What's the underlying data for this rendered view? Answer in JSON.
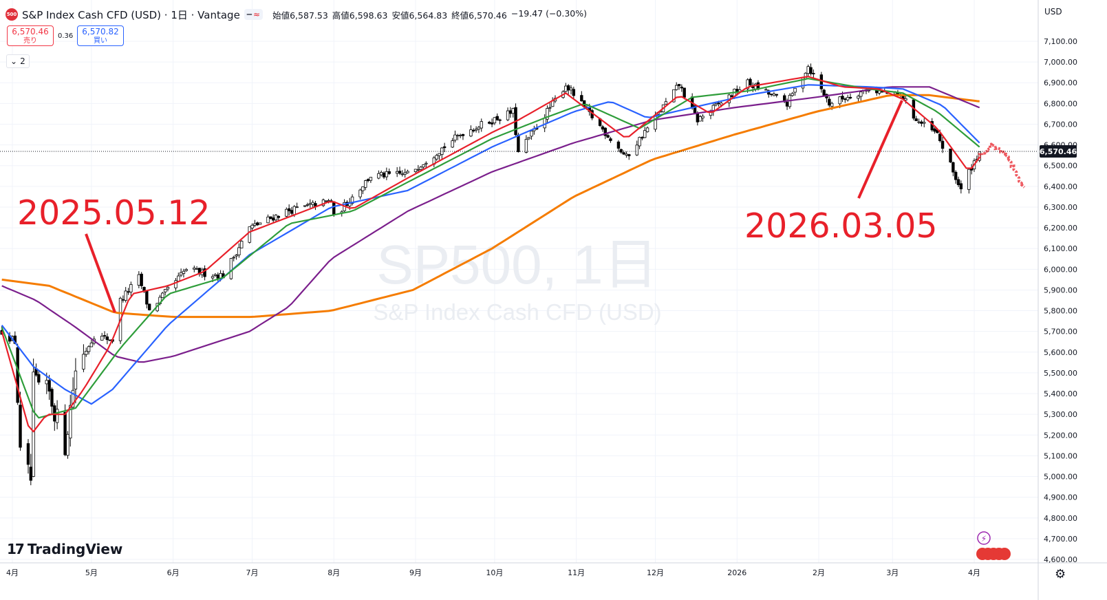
{
  "header": {
    "symbol_badge": "500",
    "title": "S&P Index Cash CFD (USD) · 1日 · Vantage",
    "btn_a": "━",
    "btn_b": "≈",
    "open_label": "始値",
    "open": "6,587.53",
    "high_label": "高値",
    "high": "6,598.63",
    "low_label": "安値",
    "low": "6,564.83",
    "close_label": "終値",
    "close": "6,570.46",
    "change": "−19.47 (−0.30%)"
  },
  "trade": {
    "sell_price": "6,570.46",
    "sell_label": "売り",
    "spread": "0.36",
    "buy_price": "6,570.82",
    "buy_label": "買い"
  },
  "indicators_collapsed": "2",
  "currency": "USD",
  "price_tag": "6,570.46",
  "watermark": {
    "symbol": "SP500, 1日",
    "name": "S&P Index Cash CFD (USD)"
  },
  "annotations": [
    {
      "text": "2025.05.12",
      "color": "#e8202a"
    },
    {
      "text": "2026.03.05",
      "color": "#e8202a"
    }
  ],
  "brand": "TradingView",
  "colors": {
    "up_candle": "#ffffff",
    "down_candle": "#000000",
    "ma_red": "#e8202a",
    "ma_green": "#2e9d3a",
    "ma_blue": "#2962ff",
    "ma_purple": "#7b1f8c",
    "ma_orange": "#f57c00"
  },
  "chart_data": {
    "type": "candlestick",
    "y_ticks": [
      "7,100.00",
      "7,000.00",
      "6,900.00",
      "6,800.00",
      "6,700.00",
      "6,600.00",
      "6,500.00",
      "6,400.00",
      "6,300.00",
      "6,200.00",
      "6,100.00",
      "6,000.00",
      "5,900.00",
      "5,800.00",
      "5,700.00",
      "5,600.00",
      "5,500.00",
      "5,400.00",
      "5,300.00",
      "5,200.00",
      "5,100.00",
      "5,000.00",
      "4,900.00",
      "4,800.00",
      "4,700.00",
      "4,600.00"
    ],
    "ylim": [
      4570,
      7150
    ],
    "x_ticks": [
      "4月",
      "5月",
      "6月",
      "7月",
      "8月",
      "9月",
      "10月",
      "11月",
      "12月",
      "2026",
      "2月",
      "3月",
      "4月"
    ],
    "x_tick_dates": [
      "2025-04-01",
      "2025-05-01",
      "2025-06-01",
      "2025-07-01",
      "2025-08-01",
      "2025-09-01",
      "2025-10-01",
      "2025-11-01",
      "2025-12-01",
      "2026-01-01",
      "2026-02-01",
      "2026-03-01",
      "2026-04-01"
    ],
    "close_anchors": [
      [
        "2025-03-28",
        5700
      ],
      [
        "2025-04-02",
        5650
      ],
      [
        "2025-04-04",
        5100
      ],
      [
        "2025-04-08",
        4980
      ],
      [
        "2025-04-09",
        5450
      ],
      [
        "2025-04-15",
        5400
      ],
      [
        "2025-04-21",
        5150
      ],
      [
        "2025-04-25",
        5520
      ],
      [
        "2025-05-02",
        5680
      ],
      [
        "2025-05-09",
        5660
      ],
      [
        "2025-05-12",
        5850
      ],
      [
        "2025-05-19",
        5960
      ],
      [
        "2025-05-23",
        5800
      ],
      [
        "2025-06-06",
        6000
      ],
      [
        "2025-06-13",
        5980
      ],
      [
        "2025-06-20",
        5970
      ],
      [
        "2025-06-30",
        6200
      ],
      [
        "2025-07-14",
        6280
      ],
      [
        "2025-07-31",
        6330
      ],
      [
        "2025-08-01",
        6250
      ],
      [
        "2025-08-15",
        6450
      ],
      [
        "2025-08-29",
        6460
      ],
      [
        "2025-09-19",
        6660
      ],
      [
        "2025-10-08",
        6760
      ],
      [
        "2025-10-10",
        6560
      ],
      [
        "2025-10-28",
        6890
      ],
      [
        "2025-11-04",
        6780
      ],
      [
        "2025-11-20",
        6540
      ],
      [
        "2025-12-10",
        6890
      ],
      [
        "2025-12-17",
        6720
      ],
      [
        "2026-01-05",
        6900
      ],
      [
        "2026-01-20",
        6800
      ],
      [
        "2026-01-28",
        6980
      ],
      [
        "2026-02-05",
        6800
      ],
      [
        "2026-02-20",
        6870
      ],
      [
        "2026-03-05",
        6830
      ],
      [
        "2026-03-10",
        6720
      ],
      [
        "2026-03-18",
        6650
      ],
      [
        "2026-03-27",
        6380
      ],
      [
        "2026-03-30",
        6470
      ],
      [
        "2026-04-03",
        6570.46
      ]
    ],
    "series": [
      {
        "name": "",
        "color": "#e8202a",
        "values": [
          [
            "2025-03-28",
            5700
          ],
          [
            "2025-04-08",
            5200
          ],
          [
            "2025-04-14",
            5300
          ],
          [
            "2025-04-21",
            5300
          ],
          [
            "2025-04-28",
            5420
          ],
          [
            "2025-05-08",
            5630
          ],
          [
            "2025-05-16",
            5880
          ],
          [
            "2025-05-30",
            5920
          ],
          [
            "2025-06-13",
            5990
          ],
          [
            "2025-06-30",
            6180
          ],
          [
            "2025-07-31",
            6330
          ],
          [
            "2025-08-08",
            6290
          ],
          [
            "2025-08-29",
            6440
          ],
          [
            "2025-09-30",
            6660
          ],
          [
            "2025-10-10",
            6720
          ],
          [
            "2025-10-28",
            6850
          ],
          [
            "2025-11-20",
            6630
          ],
          [
            "2025-12-10",
            6840
          ],
          [
            "2025-12-22",
            6750
          ],
          [
            "2026-01-05",
            6880
          ],
          [
            "2026-01-28",
            6930
          ],
          [
            "2026-02-10",
            6880
          ],
          [
            "2026-02-24",
            6870
          ],
          [
            "2026-03-05",
            6820
          ],
          [
            "2026-03-18",
            6680
          ],
          [
            "2026-03-30",
            6470
          ],
          [
            "2026-04-03",
            6540
          ]
        ]
      },
      {
        "name": "",
        "color": "#2e9d3a",
        "values": [
          [
            "2025-03-28",
            5720
          ],
          [
            "2025-04-10",
            5280
          ],
          [
            "2025-04-25",
            5330
          ],
          [
            "2025-05-12",
            5620
          ],
          [
            "2025-05-30",
            5880
          ],
          [
            "2025-06-20",
            5960
          ],
          [
            "2025-07-15",
            6220
          ],
          [
            "2025-08-08",
            6280
          ],
          [
            "2025-08-29",
            6420
          ],
          [
            "2025-09-30",
            6630
          ],
          [
            "2025-10-20",
            6730
          ],
          [
            "2025-11-04",
            6800
          ],
          [
            "2025-11-25",
            6680
          ],
          [
            "2025-12-15",
            6830
          ],
          [
            "2026-01-05",
            6860
          ],
          [
            "2026-01-28",
            6920
          ],
          [
            "2026-02-20",
            6870
          ],
          [
            "2026-03-05",
            6850
          ],
          [
            "2026-03-18",
            6760
          ],
          [
            "2026-04-03",
            6590
          ]
        ]
      },
      {
        "name": "",
        "color": "#2962ff",
        "values": [
          [
            "2025-03-28",
            5730
          ],
          [
            "2025-04-09",
            5530
          ],
          [
            "2025-04-21",
            5420
          ],
          [
            "2025-05-01",
            5350
          ],
          [
            "2025-05-09",
            5420
          ],
          [
            "2025-05-30",
            5730
          ],
          [
            "2025-06-30",
            6070
          ],
          [
            "2025-07-31",
            6300
          ],
          [
            "2025-08-29",
            6380
          ],
          [
            "2025-09-30",
            6590
          ],
          [
            "2025-10-31",
            6760
          ],
          [
            "2025-11-14",
            6810
          ],
          [
            "2025-11-28",
            6730
          ],
          [
            "2025-12-15",
            6780
          ],
          [
            "2026-01-05",
            6840
          ],
          [
            "2026-01-28",
            6890
          ],
          [
            "2026-02-20",
            6880
          ],
          [
            "2026-03-05",
            6870
          ],
          [
            "2026-03-20",
            6790
          ],
          [
            "2026-04-03",
            6610
          ]
        ]
      },
      {
        "name": "",
        "color": "#7b1f8c",
        "values": [
          [
            "2025-03-28",
            5920
          ],
          [
            "2025-04-10",
            5850
          ],
          [
            "2025-04-25",
            5720
          ],
          [
            "2025-05-10",
            5580
          ],
          [
            "2025-05-20",
            5550
          ],
          [
            "2025-06-01",
            5580
          ],
          [
            "2025-06-30",
            5700
          ],
          [
            "2025-07-15",
            5820
          ],
          [
            "2025-07-31",
            6050
          ],
          [
            "2025-08-29",
            6280
          ],
          [
            "2025-09-30",
            6470
          ],
          [
            "2025-10-31",
            6610
          ],
          [
            "2025-11-30",
            6720
          ],
          [
            "2025-12-31",
            6780
          ],
          [
            "2026-01-31",
            6830
          ],
          [
            "2026-02-28",
            6880
          ],
          [
            "2026-03-15",
            6880
          ],
          [
            "2026-04-03",
            6780
          ]
        ]
      },
      {
        "name": "",
        "color": "#f57c00",
        "values": [
          [
            "2025-03-28",
            5950
          ],
          [
            "2025-04-15",
            5920
          ],
          [
            "2025-05-10",
            5790
          ],
          [
            "2025-06-01",
            5770
          ],
          [
            "2025-07-01",
            5770
          ],
          [
            "2025-07-31",
            5800
          ],
          [
            "2025-08-31",
            5900
          ],
          [
            "2025-09-30",
            6100
          ],
          [
            "2025-10-31",
            6350
          ],
          [
            "2025-11-30",
            6530
          ],
          [
            "2025-12-31",
            6650
          ],
          [
            "2026-01-31",
            6760
          ],
          [
            "2026-02-28",
            6840
          ],
          [
            "2026-03-15",
            6840
          ],
          [
            "2026-04-03",
            6810
          ]
        ]
      }
    ],
    "forecast": {
      "color": "#e8202a",
      "values": [
        [
          "2026-04-03",
          6540
        ],
        [
          "2026-04-08",
          6600
        ],
        [
          "2026-04-13",
          6560
        ],
        [
          "2026-04-20",
          6400
        ]
      ]
    }
  }
}
